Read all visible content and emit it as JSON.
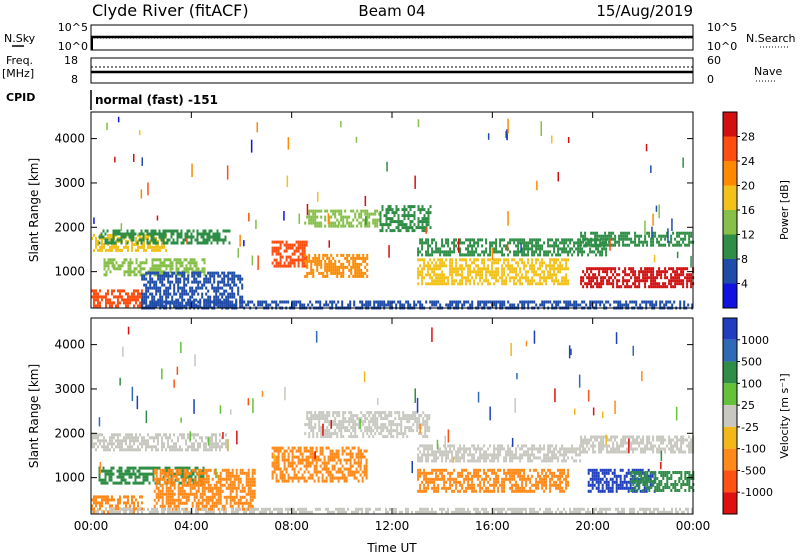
{
  "header": {
    "station": "Clyde River (fitACF)",
    "beam": "Beam 04",
    "date": "15/Aug/2019"
  },
  "params": {
    "nsky_label": "N.Sky",
    "nsky_ticks": [
      "10^5",
      "10^0"
    ],
    "nsearch_label": "N.Search",
    "nsearch_ticks": [
      "10^5",
      "10^0"
    ],
    "freq_label": "Freq.",
    "freq_unit": "[MHz]",
    "freq_ticks": [
      "18",
      "8"
    ],
    "nave_label": "Nave",
    "nave_ticks": [
      "60",
      "0"
    ],
    "cpid_label": "CPID",
    "cpid_value": "normal (fast) -151"
  },
  "chart_data": [
    {
      "type": "heatmap",
      "title": "",
      "xlabel": "",
      "ylabel": "Slant Range [km]",
      "colorbar_label": "Power [dB]",
      "colorbar_ticks": [
        "28",
        "24",
        "20",
        "16",
        "12",
        "8",
        "4"
      ],
      "colorbar_colors": [
        "#d21010",
        "#ff4e12",
        "#ff8a00",
        "#f2c21a",
        "#86c048",
        "#2f8e46",
        "#1f4ca8",
        "#1212e0"
      ],
      "x_ticks": [
        "00:00",
        "04:00",
        "08:00",
        "12:00",
        "16:00",
        "20:00",
        "00:00"
      ],
      "y_ticks": [
        "4000",
        "3000",
        "2000",
        "1000"
      ],
      "ylim": [
        180,
        4600
      ],
      "grid": false,
      "echo_bands": [
        {
          "t0": 0.0,
          "t1": 3.0,
          "r0": 1500,
          "r1": 1850,
          "color": "#f2c21a"
        },
        {
          "t0": 0.3,
          "t1": 5.5,
          "r0": 1650,
          "r1": 1950,
          "color": "#2f8e46"
        },
        {
          "t0": 0.5,
          "t1": 4.5,
          "r0": 900,
          "r1": 1300,
          "color": "#86c048"
        },
        {
          "t0": 0.0,
          "t1": 2.0,
          "r0": 200,
          "r1": 600,
          "color": "#ff4e12"
        },
        {
          "t0": 2.0,
          "t1": 6.0,
          "r0": 200,
          "r1": 1000,
          "color": "#1f4ca8"
        },
        {
          "t0": 7.2,
          "t1": 8.6,
          "r0": 1100,
          "r1": 1700,
          "color": "#ff4e12"
        },
        {
          "t0": 8.5,
          "t1": 11.0,
          "r0": 900,
          "r1": 1400,
          "color": "#ff8a00"
        },
        {
          "t0": 8.5,
          "t1": 11.5,
          "r0": 2000,
          "r1": 2400,
          "color": "#86c048"
        },
        {
          "t0": 11.5,
          "t1": 13.5,
          "r0": 1900,
          "r1": 2500,
          "color": "#2f8e46"
        },
        {
          "t0": 13.0,
          "t1": 20.5,
          "r0": 1400,
          "r1": 1750,
          "color": "#2f8e46"
        },
        {
          "t0": 13.0,
          "t1": 19.0,
          "r0": 700,
          "r1": 1300,
          "color": "#f2c21a"
        },
        {
          "t0": 19.5,
          "t1": 24.0,
          "r0": 1600,
          "r1": 1900,
          "color": "#2f8e46"
        },
        {
          "t0": 19.5,
          "t1": 24.0,
          "r0": 650,
          "r1": 1100,
          "color": "#d21010"
        },
        {
          "t0": 2.0,
          "t1": 24.0,
          "r0": 200,
          "r1": 350,
          "color": "#1f4ca8"
        }
      ]
    },
    {
      "type": "heatmap",
      "title": "",
      "xlabel": "Time UT",
      "ylabel": "Slant Range [km]",
      "colorbar_label": "Velocity [m s⁻¹]",
      "colorbar_ticks": [
        "1000",
        "500",
        "100",
        "25",
        "-25",
        "-100",
        "-500",
        "-1000"
      ],
      "colorbar_colors": [
        "#1f3fbf",
        "#2e6ab5",
        "#2f8e46",
        "#63c23a",
        "#c8c8c0",
        "#f2b81a",
        "#ff8a1a",
        "#ff5212",
        "#e01010"
      ],
      "x_ticks": [
        "00:00",
        "04:00",
        "08:00",
        "12:00",
        "16:00",
        "20:00",
        "00:00"
      ],
      "y_ticks": [
        "4000",
        "3000",
        "2000",
        "1000"
      ],
      "ylim": [
        180,
        4600
      ],
      "grid": false,
      "echo_bands": [
        {
          "t0": 0.0,
          "t1": 5.5,
          "r0": 1650,
          "r1": 2000,
          "color": "#c8c8c0"
        },
        {
          "t0": 0.3,
          "t1": 4.5,
          "r0": 850,
          "r1": 1250,
          "color": "#2f8e46"
        },
        {
          "t0": 0.0,
          "t1": 2.0,
          "r0": 200,
          "r1": 600,
          "color": "#ff8a1a"
        },
        {
          "t0": 2.5,
          "t1": 6.5,
          "r0": 300,
          "r1": 1200,
          "color": "#ff8a1a"
        },
        {
          "t0": 7.2,
          "t1": 11.0,
          "r0": 900,
          "r1": 1700,
          "color": "#ff8a1a"
        },
        {
          "t0": 8.5,
          "t1": 13.5,
          "r0": 1900,
          "r1": 2500,
          "color": "#c8c8c0"
        },
        {
          "t0": 13.0,
          "t1": 19.5,
          "r0": 1400,
          "r1": 1750,
          "color": "#c8c8c0"
        },
        {
          "t0": 13.0,
          "t1": 19.0,
          "r0": 700,
          "r1": 1200,
          "color": "#ff8a1a"
        },
        {
          "t0": 19.8,
          "t1": 22.5,
          "r0": 700,
          "r1": 1200,
          "color": "#1f3fbf"
        },
        {
          "t0": 21.5,
          "t1": 24.0,
          "r0": 700,
          "r1": 1150,
          "color": "#2f8e46"
        },
        {
          "t0": 19.5,
          "t1": 24.0,
          "r0": 1600,
          "r1": 1950,
          "color": "#c8c8c0"
        },
        {
          "t0": 0.0,
          "t1": 24.0,
          "r0": 200,
          "r1": 320,
          "color": "#c8c8c0"
        }
      ]
    }
  ]
}
